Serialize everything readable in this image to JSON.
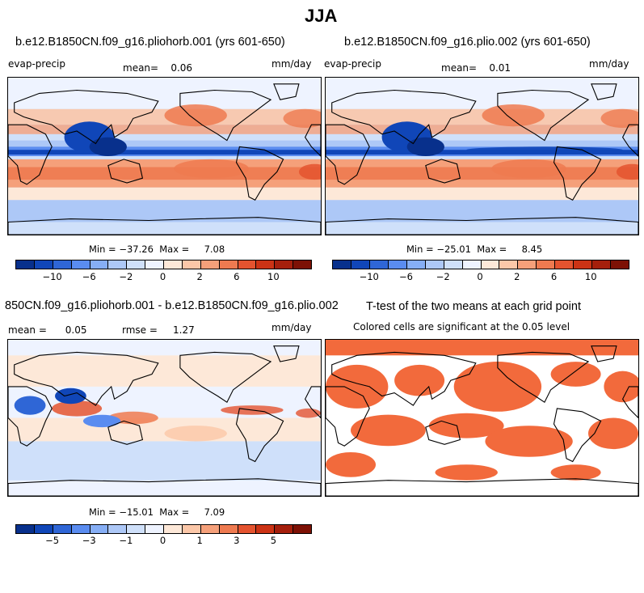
{
  "figure_title": "JJA",
  "panels": [
    {
      "id": "case1",
      "title": "b.e12.B1850CN.f09_g16.pliohorb.001 (yrs 601-650)",
      "variable": "evap-precip",
      "stat1": "mean=    0.06",
      "units": "mm/day",
      "minmax": "Min = −37.26  Max =     7.08",
      "colorbar_ticks": [
        "−10",
        "−6",
        "−2",
        "0",
        "2",
        "6",
        "10"
      ]
    },
    {
      "id": "case2",
      "title": "b.e12.B1850CN.f09_g16.plio.002 (yrs 601-650)",
      "variable": "evap-precip",
      "stat1": "mean=    0.01",
      "units": "mm/day",
      "minmax": "Min = −25.01  Max =     8.45",
      "colorbar_ticks": [
        "−10",
        "−6",
        "−2",
        "0",
        "2",
        "6",
        "10"
      ]
    },
    {
      "id": "diff",
      "title": "850CN.f09_g16.pliohorb.001 - b.e12.B1850CN.f09_g16.plio.002",
      "stat1": "mean =      0.05",
      "stat2": "rmse =     1.27",
      "units": "mm/day",
      "minmax": "Min = −15.01  Max =     7.09",
      "colorbar_ticks": [
        "−5",
        "−3",
        "−1",
        "0",
        "1",
        "3",
        "5"
      ]
    },
    {
      "id": "ttest",
      "title": "T-test of the two means at each grid point",
      "subtitle": "Colored cells are significant at the 0.05 level"
    }
  ],
  "colors": {
    "colorbar": [
      "#08308c",
      "#1046b8",
      "#2f66d6",
      "#5a8cf0",
      "#86aef5",
      "#adc8f7",
      "#cfe0fa",
      "#eef3ff",
      "#fde8d8",
      "#fbc7a8",
      "#f5a07a",
      "#ee7a50",
      "#e4532f",
      "#cc3315",
      "#a51f0c",
      "#7d1105"
    ],
    "ocean_neutral": "#cfe0fa",
    "significant": "#f26a3c",
    "coast": "#000000"
  },
  "chart_data": [
    {
      "type": "heatmap",
      "title": "b.e12.B1850CN.f09_g16.pliohorb.001 (yrs 601-650)",
      "variable": "evap-precip",
      "units": "mm/day",
      "mean": 0.06,
      "min": -37.26,
      "max": 7.08,
      "colorbar_ticks": [
        -10,
        -6,
        -2,
        0,
        2,
        6,
        10
      ]
    },
    {
      "type": "heatmap",
      "title": "b.e12.B1850CN.f09_g16.plio.002 (yrs 601-650)",
      "variable": "evap-precip",
      "units": "mm/day",
      "mean": 0.01,
      "min": -25.01,
      "max": 8.45,
      "colorbar_ticks": [
        -10,
        -6,
        -2,
        0,
        2,
        6,
        10
      ]
    },
    {
      "type": "heatmap",
      "title": "850CN.f09_g16.pliohorb.001 - b.e12.B1850CN.f09_g16.plio.002",
      "units": "mm/day",
      "mean": 0.05,
      "rmse": 1.27,
      "min": -15.01,
      "max": 7.09,
      "colorbar_ticks": [
        -5,
        -3,
        -1,
        0,
        1,
        3,
        5
      ]
    },
    {
      "type": "heatmap",
      "title": "T-test of the two means at each grid point",
      "subtitle": "Colored cells are significant at the 0.05 level",
      "significance_level": 0.05
    }
  ]
}
